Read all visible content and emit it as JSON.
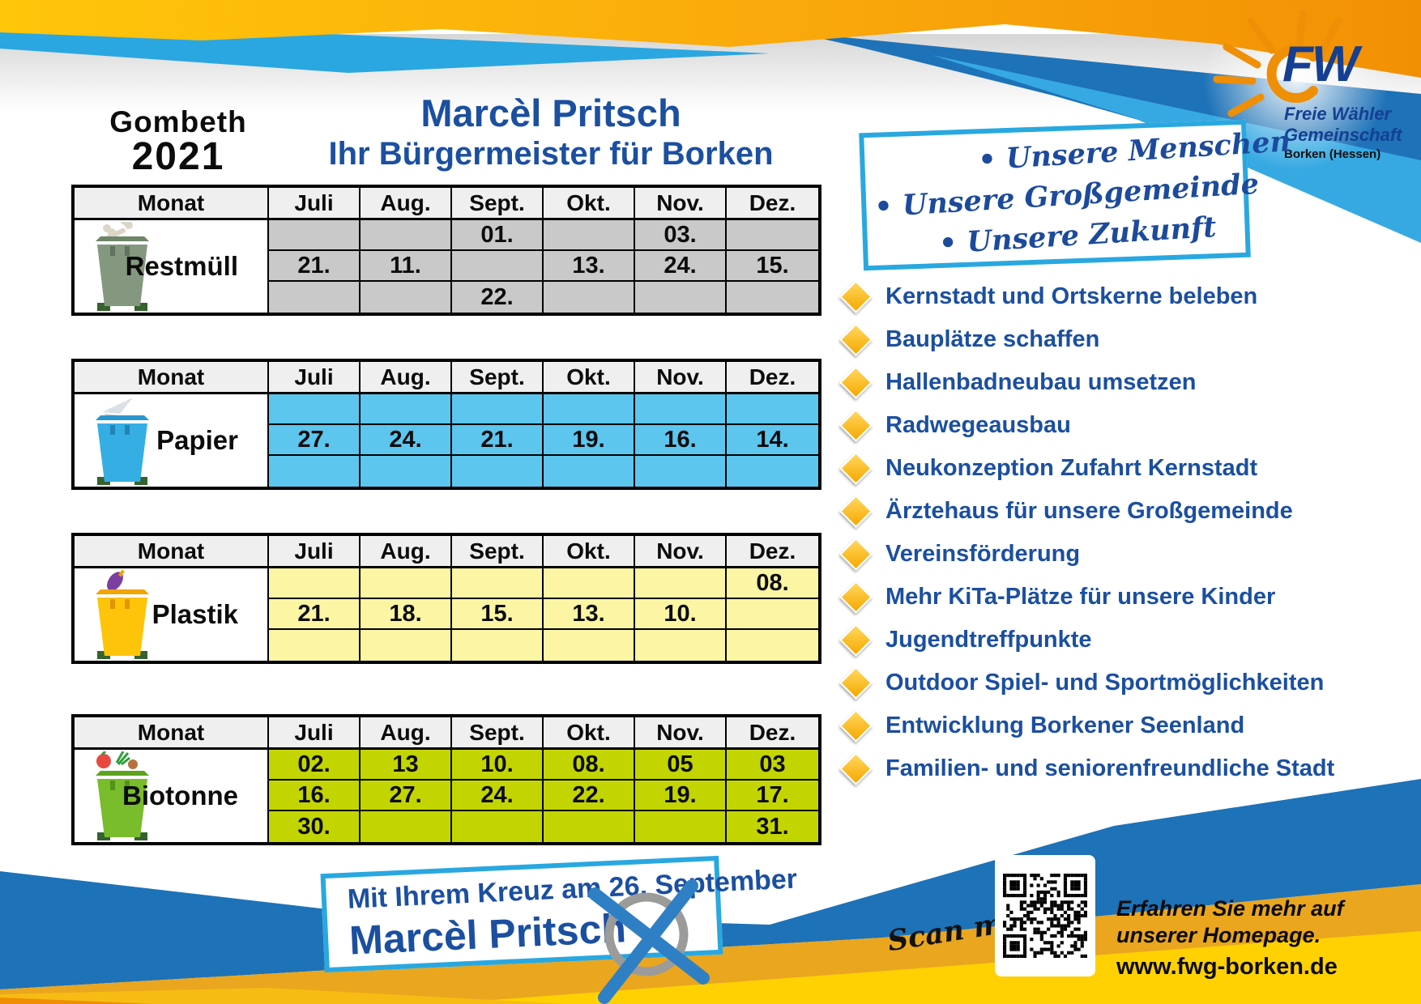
{
  "page": {
    "location": "Gombeth",
    "year": "2021",
    "candidate": "Marcèl Pritsch",
    "subtitle": "Ihr Bürgermeister für Borken"
  },
  "logo": {
    "abbr": "FW",
    "org_line1": "Freie Wähler",
    "org_line2": "Gemeinschaft",
    "region": "Borken (Hessen)"
  },
  "slogan_box": {
    "items": [
      "• Unsere Menschen",
      "• Unsere Großgemeinde",
      "• Unsere Zukunft"
    ]
  },
  "calendar": {
    "month_header": [
      "Monat",
      "Juli",
      "Aug.",
      "Sept.",
      "Okt.",
      "Nov.",
      "Dez."
    ],
    "tables": [
      {
        "label": "Restmüll",
        "cell_color": "#c9c9c9",
        "rows": [
          [
            "",
            "",
            "01.",
            "",
            "03.",
            ""
          ],
          [
            "21.",
            "11.",
            "",
            "13.",
            "24.",
            "15."
          ],
          [
            "",
            "",
            "22.",
            "",
            "",
            ""
          ]
        ]
      },
      {
        "label": "Papier",
        "cell_color": "#5cc6ee",
        "rows": [
          [
            "",
            "",
            "",
            "",
            "",
            ""
          ],
          [
            "27.",
            "24.",
            "21.",
            "19.",
            "16.",
            "14."
          ],
          [
            "",
            "",
            "",
            "",
            "",
            ""
          ]
        ]
      },
      {
        "label": "Plastik",
        "cell_color": "#fbf5a4",
        "rows": [
          [
            "",
            "",
            "",
            "",
            "",
            "08."
          ],
          [
            "21.",
            "18.",
            "15.",
            "13.",
            "10.",
            ""
          ],
          [
            "",
            "",
            "",
            "",
            "",
            ""
          ]
        ]
      },
      {
        "label": "Biotonne",
        "cell_color": "#c3d500",
        "rows": [
          [
            "02.",
            "13",
            "10.",
            "08.",
            "05",
            "03"
          ],
          [
            "16.",
            "27.",
            "24.",
            "22.",
            "19.",
            "17."
          ],
          [
            "30.",
            "",
            "",
            "",
            "",
            "31."
          ]
        ]
      }
    ]
  },
  "topics": [
    "Kernstadt und Ortskerne beleben",
    "Bauplätze schaffen",
    "Hallenbadneubau umsetzen",
    "Radwegeausbau",
    "Neukonzeption Zufahrt Kernstadt",
    "Ärztehaus für unsere Großgemeinde",
    "Vereinsförderung",
    "Mehr KiTa-Plätze für unsere Kinder",
    "Jugendtreffpunkte",
    "Outdoor Spiel- und Sportmöglichkeiten",
    "Entwicklung Borkener Seenland",
    "Familien- und seniorenfreundliche Stadt"
  ],
  "banner": {
    "line1": "Mit Ihrem Kreuz am 26. September",
    "line2": "Marcèl Pritsch"
  },
  "footer": {
    "scan_me": "Scan me",
    "info_line1": "Erfahren Sie mehr auf",
    "info_line2": "unserer Homepage.",
    "website": "www.fwg-borken.de"
  },
  "colors": {
    "accent_light_blue": "#29a8e0",
    "mid_blue": "#1e72b7",
    "dark_blue_text": "#1b4fa0",
    "gold": "#f9ae00",
    "mustard": "#e9a61e",
    "restmuell_cell": "#c9c9c9",
    "papier_cell": "#5cc6ee",
    "plastik_cell": "#fbf5a4",
    "biotonne_cell": "#c3d500"
  }
}
